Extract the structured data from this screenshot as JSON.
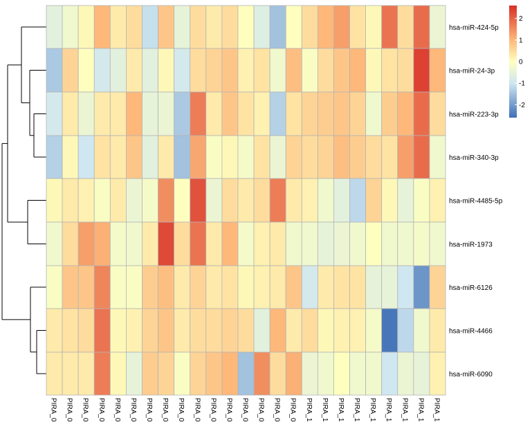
{
  "chart_data": {
    "type": "heatmap",
    "title": "",
    "rows": [
      "hsa-miR-424-5p",
      "hsa-miR-24-3p",
      "hsa-miR-223-3p",
      "hsa-miR-340-3p",
      "hsa-miR-4485-5p",
      "hsa-miR-1973",
      "hsa-miR-6126",
      "hsa-miR-4466",
      "hsa-miR-6090"
    ],
    "columns": [
      "PIRA_0",
      "PIRA_0",
      "PIRA_0",
      "PIRA_0",
      "PIRA_0",
      "PIRA_0",
      "PIRA_0",
      "PIRA_0",
      "PIRA_0",
      "PIRA_0",
      "PIRA_0",
      "PIRA_0",
      "PIRA_0",
      "PIRA_0",
      "PIRA_0",
      "PIRA_0",
      "PIRA_1",
      "PIRA_1",
      "PIRA_1",
      "PIRA_1",
      "PIRA_1",
      "PIRA_1",
      "PIRA_1",
      "PIRA_1",
      "PIRA_1"
    ],
    "values": [
      [
        -0.6,
        -0.3,
        0.1,
        1.0,
        0.3,
        0.5,
        -1.1,
        0.8,
        -0.5,
        0.5,
        0.3,
        0.5,
        0.0,
        -0.7,
        -1.5,
        0.0,
        0.5,
        1.0,
        1.3,
        0.4,
        0.1,
        1.8,
        0.5,
        1.9,
        -0.4
      ],
      [
        -1.4,
        0.6,
        0.0,
        -0.9,
        -0.6,
        0.3,
        -0.6,
        0.1,
        -0.9,
        0.5,
        0.6,
        0.8,
        0.2,
        0.4,
        -0.3,
        0.9,
        -0.1,
        0.5,
        0.8,
        1.0,
        0.1,
        0.4,
        0.5,
        2.4,
        1.0
      ],
      [
        -0.9,
        0.3,
        -0.4,
        0.3,
        0.3,
        1.0,
        -0.5,
        -0.4,
        -1.4,
        1.7,
        0.3,
        0.8,
        0.4,
        0.2,
        -1.3,
        0.4,
        0.6,
        0.7,
        0.8,
        0.6,
        -0.3,
        0.7,
        1.0,
        1.9,
        0.5
      ],
      [
        -1.3,
        0.1,
        -1.0,
        0.4,
        0.3,
        0.8,
        -0.6,
        0.3,
        -1.5,
        1.2,
        -0.1,
        0.1,
        -0.2,
        0.4,
        -0.4,
        0.6,
        0.5,
        0.6,
        0.9,
        0.7,
        0.5,
        0.4,
        1.3,
        1.9,
        -0.3
      ],
      [
        0.1,
        0.3,
        0.2,
        -0.1,
        0.3,
        -0.4,
        -0.2,
        1.5,
        0.0,
        2.2,
        -0.4,
        0.5,
        0.3,
        0.5,
        1.7,
        0.3,
        0.2,
        -0.3,
        -0.6,
        -1.2,
        0.6,
        0.1,
        -0.5,
        -0.1,
        0.2
      ],
      [
        -0.3,
        0.5,
        1.3,
        1.1,
        -0.2,
        -0.3,
        0.3,
        2.3,
        0.5,
        1.8,
        0.3,
        1.0,
        -0.2,
        0.2,
        0.3,
        -0.3,
        -0.3,
        -0.5,
        -0.4,
        -0.3,
        0.0,
        -0.3,
        -0.3,
        -0.2,
        -0.3
      ],
      [
        -0.1,
        0.8,
        0.8,
        1.6,
        -0.1,
        -0.1,
        0.7,
        0.9,
        0.3,
        0.6,
        0.3,
        0.4,
        0.1,
        0.2,
        0.3,
        0.8,
        -0.9,
        0.3,
        0.4,
        0.4,
        -0.5,
        -0.5,
        -1.0,
        -2.1,
        0.6
      ],
      [
        0.3,
        0.4,
        0.5,
        1.8,
        0.1,
        0.2,
        0.6,
        0.8,
        0.3,
        0.5,
        0.5,
        0.6,
        0.5,
        -0.6,
        1.0,
        0.3,
        0.5,
        0.1,
        0.2,
        0.2,
        -0.2,
        -2.5,
        -1.2,
        -0.3,
        0.3
      ],
      [
        0.3,
        0.3,
        0.3,
        1.7,
        0.1,
        -0.5,
        0.7,
        0.6,
        -0.1,
        0.6,
        0.8,
        1.0,
        -1.5,
        1.5,
        0.5,
        1.1,
        -0.4,
        -0.3,
        0.0,
        -0.3,
        -0.3,
        -1.0,
        -0.4,
        -0.5,
        0.2
      ]
    ],
    "legend": {
      "ticks": [
        2,
        1,
        0,
        -1,
        -2
      ],
      "min": -2.6,
      "max": 2.6,
      "position": "top-right"
    },
    "row_dendrogram": true,
    "row_gaps_after": [
      4,
      6
    ],
    "colors": {
      "low": "#3f6fb5",
      "mid_low": "#cfe7f1",
      "mid": "#feffbf",
      "mid_high": "#fdb87a",
      "high": "#d73027",
      "grid": "#b4b4b4",
      "tree": "#000000"
    }
  }
}
